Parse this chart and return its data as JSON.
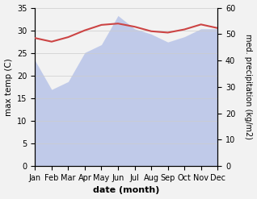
{
  "months": [
    "Jan",
    "Feb",
    "Mar",
    "Apr",
    "May",
    "Jun",
    "Jul",
    "Aug",
    "Sep",
    "Oct",
    "Nov",
    "Dec"
  ],
  "month_indices": [
    0,
    1,
    2,
    3,
    4,
    5,
    6,
    7,
    8,
    9,
    10,
    11
  ],
  "temperature": [
    28.3,
    27.5,
    28.5,
    30.0,
    31.2,
    31.5,
    30.8,
    29.8,
    29.5,
    30.2,
    31.3,
    30.5
  ],
  "precipitation": [
    40,
    29,
    32,
    43,
    46,
    57,
    52,
    50,
    47,
    49,
    52,
    52
  ],
  "temp_color": "#cc4444",
  "precip_fill_color": "#b8c4e8",
  "precip_alpha": 0.85,
  "left_ylim": [
    0,
    35
  ],
  "right_ylim": [
    0,
    60
  ],
  "left_yticks": [
    0,
    5,
    10,
    15,
    20,
    25,
    30,
    35
  ],
  "right_yticks": [
    0,
    10,
    20,
    30,
    40,
    50,
    60
  ],
  "xlabel": "date (month)",
  "ylabel_left": "max temp (C)",
  "ylabel_right": "med. precipitation (kg/m2)",
  "bg_color": "#ffffff",
  "fig_bg": "#f2f2f2"
}
